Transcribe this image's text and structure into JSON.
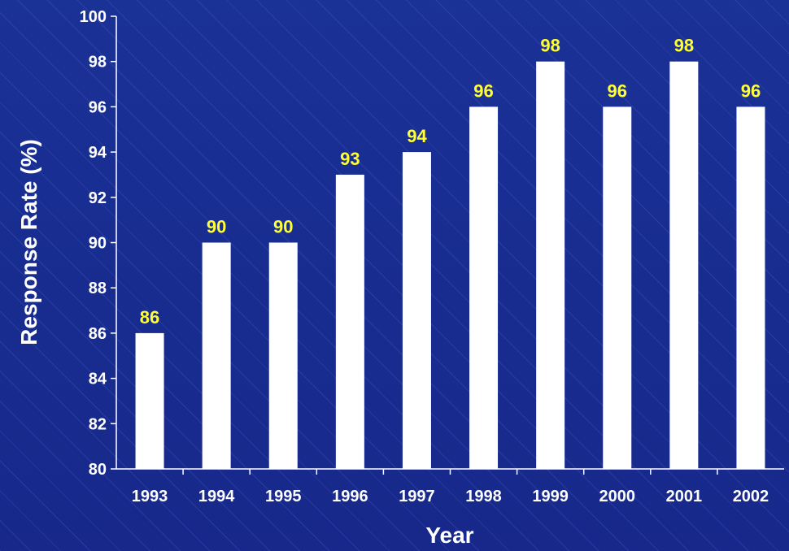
{
  "chart_data": {
    "type": "bar",
    "categories": [
      "1993",
      "1994",
      "1995",
      "1996",
      "1997",
      "1998",
      "1999",
      "2000",
      "2001",
      "2002"
    ],
    "values": [
      86,
      90,
      90,
      93,
      94,
      96,
      98,
      96,
      98,
      96
    ],
    "data_labels": [
      "86",
      "90",
      "90",
      "93",
      "94",
      "96",
      "98",
      "96",
      "98",
      "96"
    ],
    "xlabel": "Year",
    "ylabel": "Response Rate (%)",
    "ylim": [
      80,
      100
    ],
    "yticks": [
      "80",
      "82",
      "84",
      "86",
      "88",
      "90",
      "92",
      "94",
      "96",
      "98",
      "100"
    ],
    "grid": false,
    "legend": "none",
    "colors": {
      "background": "#1b2f8f",
      "bar": "#ffffff",
      "data_label": "#ffff33",
      "text": "#ffffff",
      "axis": "#ffffff"
    }
  }
}
